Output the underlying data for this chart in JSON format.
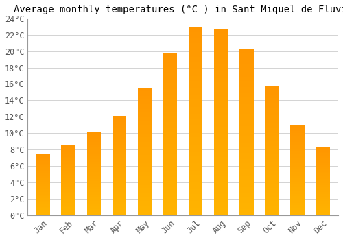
{
  "title": "Average monthly temperatures (°C ) in Sant Miquel de Fluvià",
  "months": [
    "Jan",
    "Feb",
    "Mar",
    "Apr",
    "May",
    "Jun",
    "Jul",
    "Aug",
    "Sep",
    "Oct",
    "Nov",
    "Dec"
  ],
  "values": [
    7.5,
    8.5,
    10.2,
    12.1,
    15.5,
    19.8,
    23.0,
    22.7,
    20.2,
    15.7,
    11.0,
    8.3
  ],
  "bar_color": "#FFAA00",
  "bar_edge_color": "none",
  "ylim": [
    0,
    24
  ],
  "yticks": [
    0,
    2,
    4,
    6,
    8,
    10,
    12,
    14,
    16,
    18,
    20,
    22,
    24
  ],
  "ytick_labels": [
    "0°C",
    "2°C",
    "4°C",
    "6°C",
    "8°C",
    "10°C",
    "12°C",
    "14°C",
    "16°C",
    "18°C",
    "20°C",
    "22°C",
    "24°C"
  ],
  "background_color": "#ffffff",
  "grid_color": "#cccccc",
  "title_fontsize": 10,
  "tick_fontsize": 8.5,
  "bar_width": 0.55,
  "figsize": [
    5.0,
    3.5
  ],
  "dpi": 100
}
